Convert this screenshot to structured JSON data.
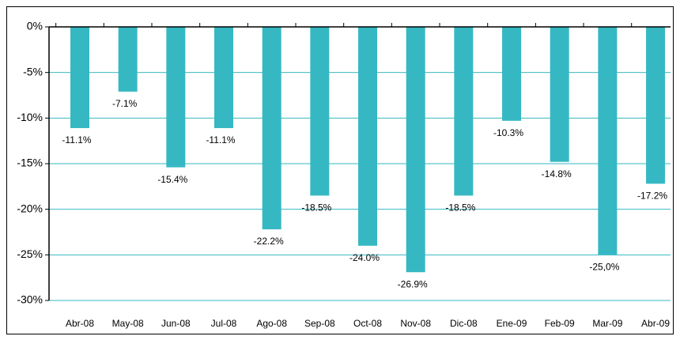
{
  "chart_data": {
    "type": "bar",
    "categories": [
      "Abr-08",
      "May-08",
      "Jun-08",
      "Jul-08",
      "Ago-08",
      "Sep-08",
      "Oct-08",
      "Nov-08",
      "Dic-08",
      "Ene-09",
      "Feb-09",
      "Mar-09",
      "Abr-09"
    ],
    "values": [
      -11.1,
      -7.1,
      -15.4,
      -11.1,
      -22.2,
      -18.5,
      -24.0,
      -26.9,
      -18.5,
      -10.3,
      -14.8,
      -25.0,
      -17.2
    ],
    "value_labels": [
      "-11.1%",
      "-7.1%",
      "-15.4%",
      "-11.1%",
      "-22.2%",
      "-18.5%",
      "-24.0%",
      "-26.9%",
      "-18.5%",
      "-10.3%",
      "-14.8%",
      "-25,0%",
      "-17.2%"
    ],
    "color": "#36b8c3",
    "ylim": [
      -30,
      0
    ],
    "yticks": [
      {
        "value": 0,
        "label": "0%"
      },
      {
        "value": -5,
        "label": "-5%"
      },
      {
        "value": -10,
        "label": "-10%"
      },
      {
        "value": -15,
        "label": "-15%"
      },
      {
        "value": -20,
        "label": "-20%"
      },
      {
        "value": -25,
        "label": "-25%"
      },
      {
        "value": -30,
        "label": "-30%"
      }
    ],
    "grid": true
  }
}
